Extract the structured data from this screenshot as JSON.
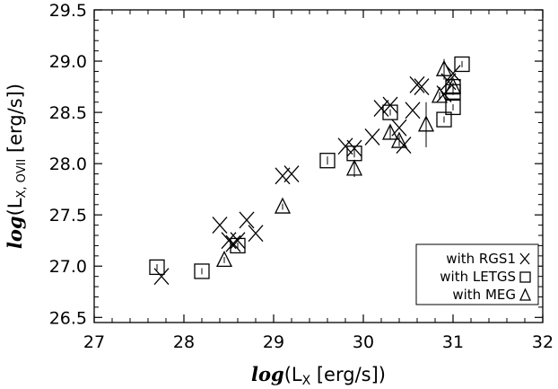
{
  "chart_data": {
    "type": "scatter",
    "title": "",
    "xlabel": {
      "fn": "log",
      "open": "(L",
      "sub": "X",
      "close": " [erg/s])"
    },
    "ylabel": {
      "fn": "log",
      "open": "(L",
      "sub": "X, OVII",
      "close": " [erg/s])"
    },
    "xlim": [
      27,
      32
    ],
    "ylim": [
      26.45,
      29.5
    ],
    "xticks": [
      "27",
      "28",
      "29",
      "30",
      "31",
      "32"
    ],
    "yticks": [
      "26.5",
      "27.0",
      "27.5",
      "28.0",
      "28.5",
      "29.0",
      "29.5"
    ],
    "grid": false,
    "legend_position": "bottom-right",
    "series": [
      {
        "name": "with RGS1",
        "marker": "cross",
        "points": [
          {
            "x": 27.75,
            "y": 26.9
          },
          {
            "x": 28.4,
            "y": 27.4
          },
          {
            "x": 28.5,
            "y": 27.25
          },
          {
            "x": 28.55,
            "y": 27.22
          },
          {
            "x": 28.6,
            "y": 27.25
          },
          {
            "x": 28.7,
            "y": 27.45
          },
          {
            "x": 28.8,
            "y": 27.32
          },
          {
            "x": 29.1,
            "y": 27.88
          },
          {
            "x": 29.2,
            "y": 27.9
          },
          {
            "x": 29.8,
            "y": 28.17
          },
          {
            "x": 29.9,
            "y": 28.15
          },
          {
            "x": 30.1,
            "y": 28.26
          },
          {
            "x": 30.2,
            "y": 28.54
          },
          {
            "x": 30.3,
            "y": 28.57
          },
          {
            "x": 30.4,
            "y": 28.35
          },
          {
            "x": 30.45,
            "y": 28.18
          },
          {
            "x": 30.55,
            "y": 28.52
          },
          {
            "x": 30.6,
            "y": 28.77
          },
          {
            "x": 30.65,
            "y": 28.75
          },
          {
            "x": 30.9,
            "y": 28.68
          },
          {
            "x": 30.95,
            "y": 28.8
          },
          {
            "x": 31.0,
            "y": 28.88
          }
        ]
      },
      {
        "name": "with LETGS",
        "marker": "square",
        "points": [
          {
            "x": 27.7,
            "y": 26.99,
            "err": 0.03
          },
          {
            "x": 28.2,
            "y": 26.95,
            "err": 0.03
          },
          {
            "x": 28.6,
            "y": 27.2,
            "err": 0.03
          },
          {
            "x": 29.6,
            "y": 28.03,
            "err": 0.04
          },
          {
            "x": 29.9,
            "y": 28.1,
            "err": 0.04
          },
          {
            "x": 30.3,
            "y": 28.5,
            "err": 0.03
          },
          {
            "x": 30.9,
            "y": 28.43,
            "err": 0.03
          },
          {
            "x": 31.0,
            "y": 28.55,
            "err": 0.03
          },
          {
            "x": 31.0,
            "y": 28.7,
            "err": 0.03
          },
          {
            "x": 31.0,
            "y": 28.75,
            "err": 0.03
          },
          {
            "x": 31.1,
            "y": 28.97,
            "err": 0.03
          }
        ]
      },
      {
        "name": "with MEG",
        "marker": "triangle",
        "points": [
          {
            "x": 28.45,
            "y": 27.06,
            "err": 0.03
          },
          {
            "x": 29.1,
            "y": 27.58,
            "err": 0.03
          },
          {
            "x": 29.9,
            "y": 27.95,
            "err": 0.08
          },
          {
            "x": 30.3,
            "y": 28.3,
            "err": 0.06
          },
          {
            "x": 30.4,
            "y": 28.22,
            "err": 0.05
          },
          {
            "x": 30.7,
            "y": 28.38,
            "err": 0.22
          },
          {
            "x": 30.85,
            "y": 28.66,
            "err": 0.04
          },
          {
            "x": 30.9,
            "y": 28.92,
            "err": 0.1
          },
          {
            "x": 31.0,
            "y": 28.75,
            "err": 0.04
          }
        ]
      }
    ]
  }
}
